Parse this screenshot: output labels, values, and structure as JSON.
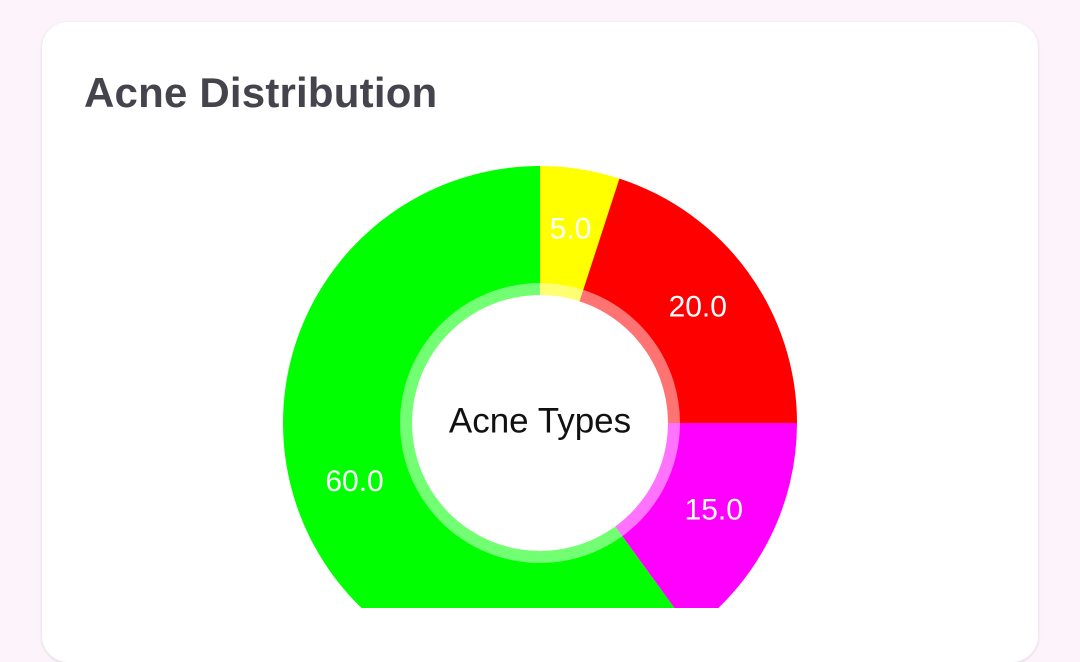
{
  "card": {
    "title": "Acne Distribution"
  },
  "chart_data": {
    "type": "pie",
    "variant": "donut",
    "center_label": "Acne Types",
    "start_angle_deg": -90,
    "direction": "clockwise",
    "slices": [
      {
        "value": 5.0,
        "label": "5.0",
        "color": "#ffff00"
      },
      {
        "value": 20.0,
        "label": "20.0",
        "color": "#ff0000"
      },
      {
        "value": 15.0,
        "label": "15.0",
        "color": "#ff00ff"
      },
      {
        "value": 60.0,
        "label": "60.0",
        "color": "#00ff00"
      }
    ]
  },
  "colors": {
    "page_background": "#fcf3fb",
    "card_background": "#ffffff",
    "title_text": "#45444d",
    "slice_label_text": "#ffffff",
    "center_text": "#111111"
  }
}
